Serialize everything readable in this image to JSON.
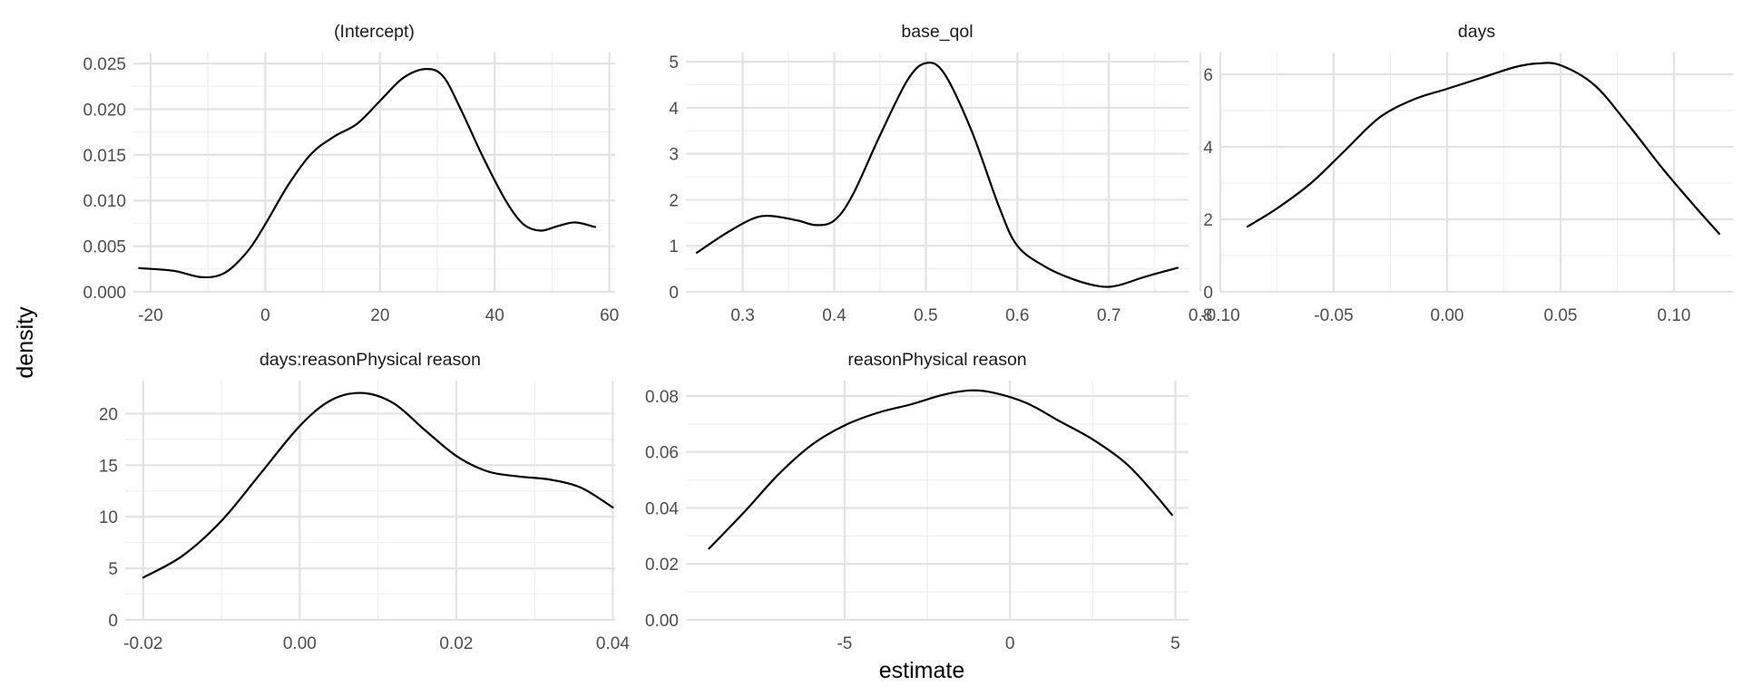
{
  "chart_data": {
    "type": "line",
    "kind": "faceted density plot",
    "xlabel": "estimate",
    "ylabel": "density",
    "facets": [
      {
        "title": "(Intercept)",
        "xlim": [
          -23,
          61
        ],
        "ylim": [
          0,
          0.0262
        ],
        "xticks": [
          -20,
          0,
          20,
          40,
          60
        ],
        "xtick_labels": [
          "-20",
          "0",
          "20",
          "40",
          "60"
        ],
        "yticks": [
          0,
          0.005,
          0.01,
          0.015,
          0.02,
          0.025
        ],
        "ytick_labels": [
          "0.000",
          "0.005",
          "0.010",
          "0.015",
          "0.020",
          "0.025"
        ],
        "series": [
          {
            "name": "density",
            "x": [
              -22,
              -16,
              -11,
              -7,
              -3,
              0,
              4,
              8,
              12,
              16,
              20,
              24,
              28,
              31,
              34,
              38,
              42,
              45,
              48,
              51,
              54,
              57.5
            ],
            "y": [
              0.0026,
              0.0023,
              0.0016,
              0.0021,
              0.0045,
              0.0074,
              0.0117,
              0.0151,
              0.017,
              0.0184,
              0.0209,
              0.0234,
              0.0244,
              0.0236,
              0.0201,
              0.0147,
              0.0099,
              0.0074,
              0.0067,
              0.0072,
              0.0076,
              0.0071
            ]
          }
        ]
      },
      {
        "title": "base_qol",
        "xlim": [
          0.238,
          0.787
        ],
        "ylim": [
          0,
          5.2
        ],
        "xticks": [
          0.3,
          0.4,
          0.5,
          0.6,
          0.7,
          0.8
        ],
        "xtick_labels": [
          "0.3",
          "0.4",
          "0.5",
          "0.6",
          "0.7",
          "0.8"
        ],
        "yticks": [
          0,
          1,
          2,
          3,
          4,
          5
        ],
        "ytick_labels": [
          "0",
          "1",
          "2",
          "3",
          "4",
          "5"
        ],
        "series": [
          {
            "name": "density",
            "x": [
              0.25,
              0.28,
              0.31,
              0.33,
              0.36,
              0.38,
              0.4,
              0.42,
              0.45,
              0.48,
              0.5,
              0.52,
              0.55,
              0.58,
              0.6,
              0.63,
              0.66,
              0.69,
              0.71,
              0.74,
              0.775
            ],
            "y": [
              0.85,
              1.25,
              1.58,
              1.65,
              1.55,
              1.45,
              1.55,
              2.1,
              3.4,
              4.6,
              4.97,
              4.75,
              3.5,
              1.85,
              1.0,
              0.55,
              0.28,
              0.12,
              0.14,
              0.33,
              0.52
            ]
          }
        ]
      },
      {
        "title": "days",
        "xlim": [
          -0.1,
          0.126
        ],
        "ylim": [
          0,
          6.6
        ],
        "xticks": [
          -0.1,
          -0.05,
          0,
          0.05,
          0.1
        ],
        "xtick_labels": [
          "-0.10",
          "-0.05",
          "0.00",
          "0.05",
          "0.10"
        ],
        "yticks": [
          0,
          2,
          4,
          6
        ],
        "ytick_labels": [
          "0",
          "2",
          "4",
          "6"
        ],
        "series": [
          {
            "name": "density",
            "x": [
              -0.088,
              -0.075,
              -0.06,
              -0.045,
              -0.03,
              -0.015,
              0.0,
              0.015,
              0.03,
              0.04,
              0.05,
              0.065,
              0.08,
              0.095,
              0.11,
              0.12
            ],
            "y": [
              1.8,
              2.3,
              3.0,
              3.9,
              4.8,
              5.3,
              5.6,
              5.9,
              6.2,
              6.3,
              6.25,
              5.7,
              4.6,
              3.4,
              2.3,
              1.6
            ]
          }
        ]
      },
      {
        "title": "days:reasonPhysical reason",
        "xlim": [
          -0.0223,
          0.0403
        ],
        "ylim": [
          0,
          23.2
        ],
        "xticks": [
          -0.02,
          0,
          0.02,
          0.04
        ],
        "xtick_labels": [
          "-0.02",
          "0.00",
          "0.02",
          "0.04"
        ],
        "yticks": [
          0,
          5,
          10,
          15,
          20
        ],
        "ytick_labels": [
          "0",
          "5",
          "10",
          "15",
          "20"
        ],
        "series": [
          {
            "name": "density",
            "x": [
              -0.02,
              -0.015,
              -0.01,
              -0.005,
              0.0,
              0.004,
              0.008,
              0.012,
              0.016,
              0.02,
              0.024,
              0.028,
              0.032,
              0.036,
              0.04
            ],
            "y": [
              4.1,
              6.2,
              9.6,
              14.2,
              18.8,
              21.3,
              22.0,
              21.0,
              18.4,
              15.9,
              14.4,
              13.9,
              13.6,
              12.8,
              10.9
            ]
          }
        ]
      },
      {
        "title": "reasonPhysical reason",
        "xlim": [
          -9.8,
          5.4
        ],
        "ylim": [
          0,
          0.0855
        ],
        "xticks": [
          -5,
          0,
          5
        ],
        "xtick_labels": [
          "-5",
          "0",
          "5"
        ],
        "yticks": [
          0,
          0.02,
          0.04,
          0.06,
          0.08
        ],
        "ytick_labels": [
          "0.00",
          "0.02",
          "0.04",
          "0.06",
          "0.08"
        ],
        "series": [
          {
            "name": "density",
            "x": [
              -9.1,
              -8.0,
              -7.0,
              -6.0,
              -5.0,
              -4.0,
              -3.0,
              -2.0,
              -1.2,
              -0.5,
              0.5,
              1.5,
              2.5,
              3.5,
              4.3,
              4.9
            ],
            "y": [
              0.0255,
              0.039,
              0.052,
              0.0625,
              0.0695,
              0.074,
              0.077,
              0.0805,
              0.082,
              0.0812,
              0.0775,
              0.071,
              0.0645,
              0.056,
              0.046,
              0.0375
            ]
          }
        ]
      }
    ]
  }
}
